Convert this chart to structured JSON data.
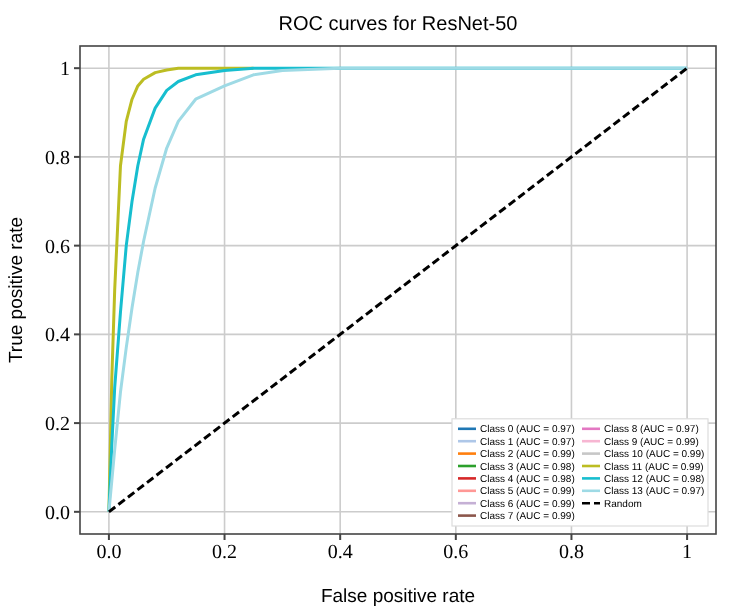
{
  "chart_data": {
    "type": "line",
    "title": "ROC curves for ResNet-50",
    "xlabel": "False positive rate",
    "ylabel": "True positive rate",
    "x": [
      0,
      0.005,
      0.01,
      0.02,
      0.03,
      0.04,
      0.05,
      0.06,
      0.08,
      0.1,
      0.12,
      0.15,
      0.2,
      0.25,
      0.3,
      0.4,
      0.6,
      0.8,
      1
    ],
    "xlim": [
      -0.05,
      1.05
    ],
    "ylim": [
      -0.05,
      1.05
    ],
    "xticks": [
      {
        "value": 0,
        "label": "0.0"
      },
      0.2,
      0.4,
      0.6,
      0.8,
      1
    ],
    "yticks": [
      {
        "value": 0,
        "label": "0.0"
      },
      0.2,
      0.4,
      0.6,
      0.8,
      1
    ],
    "grid": true,
    "legend": "bottom right",
    "series": [
      {
        "name": "Class 0 (AUC = 0.97)",
        "color": "#1f77b4",
        "values": [
          null,
          null,
          null,
          null,
          null,
          null,
          null,
          null,
          null,
          null,
          null,
          null,
          null,
          null,
          null,
          null,
          null,
          null,
          null
        ]
      },
      {
        "name": "Class 1 (AUC = 0.97)",
        "color": "#aec7e8",
        "values": [
          null,
          null,
          null,
          null,
          null,
          null,
          null,
          null,
          null,
          null,
          null,
          null,
          null,
          null,
          null,
          null,
          null,
          null,
          null
        ]
      },
      {
        "name": "Class 2 (AUC = 0.99)",
        "color": "#ff7f0e",
        "values": [
          null,
          null,
          null,
          null,
          null,
          null,
          null,
          null,
          null,
          null,
          null,
          null,
          null,
          null,
          null,
          null,
          null,
          null,
          null
        ]
      },
      {
        "name": "Class 3 (AUC = 0.98)",
        "color": "#2ca02c",
        "values": [
          null,
          null,
          null,
          null,
          null,
          null,
          null,
          null,
          null,
          null,
          null,
          null,
          null,
          null,
          null,
          null,
          null,
          null,
          null
        ]
      },
      {
        "name": "Class 4 (AUC = 0.98)",
        "color": "#d62728",
        "values": [
          null,
          null,
          null,
          null,
          null,
          null,
          null,
          null,
          null,
          null,
          null,
          null,
          null,
          null,
          null,
          null,
          null,
          null,
          null
        ]
      },
      {
        "name": "Class 5 (AUC = 0.99)",
        "color": "#ff9896",
        "values": [
          null,
          null,
          null,
          null,
          null,
          null,
          null,
          null,
          null,
          null,
          null,
          null,
          null,
          null,
          null,
          null,
          null,
          null,
          null
        ]
      },
      {
        "name": "Class 6 (AUC = 0.99)",
        "color": "#c5b0d5",
        "values": [
          null,
          null,
          null,
          null,
          null,
          null,
          null,
          null,
          null,
          null,
          null,
          null,
          null,
          null,
          null,
          null,
          null,
          null,
          null
        ]
      },
      {
        "name": "Class 7 (AUC = 0.99)",
        "color": "#8c564b",
        "values": [
          null,
          null,
          null,
          null,
          null,
          null,
          null,
          null,
          null,
          null,
          null,
          null,
          null,
          null,
          null,
          null,
          null,
          null,
          null
        ]
      },
      {
        "name": "Class 8 (AUC = 0.97)",
        "color": "#e377c2",
        "values": [
          null,
          null,
          null,
          null,
          null,
          null,
          null,
          null,
          null,
          null,
          null,
          null,
          null,
          null,
          null,
          null,
          null,
          null,
          null
        ]
      },
      {
        "name": "Class 9 (AUC = 0.99)",
        "color": "#f7b6d2",
        "values": [
          null,
          null,
          null,
          null,
          null,
          null,
          null,
          null,
          null,
          null,
          null,
          null,
          null,
          null,
          null,
          null,
          null,
          null,
          null
        ]
      },
      {
        "name": "Class 10 (AUC = 0.99)",
        "color": "#c7c7c7",
        "values": [
          null,
          null,
          null,
          null,
          null,
          null,
          null,
          null,
          null,
          null,
          null,
          null,
          null,
          null,
          null,
          null,
          null,
          null,
          null
        ]
      },
      {
        "name": "Class 11 (AUC = 0.99)",
        "color": "#bcbd22",
        "values": [
          0,
          0.3,
          0.5,
          0.78,
          0.88,
          0.93,
          0.96,
          0.975,
          0.99,
          0.996,
          1,
          1,
          1,
          1,
          null,
          null,
          null,
          null,
          null
        ]
      },
      {
        "name": "Class 12 (AUC = 0.98)",
        "color": "#17becf",
        "values": [
          0,
          0.15,
          0.28,
          0.45,
          0.6,
          0.7,
          0.78,
          0.84,
          0.91,
          0.95,
          0.97,
          0.985,
          0.995,
          1,
          1,
          1,
          1,
          1,
          1
        ]
      },
      {
        "name": "Class 13 (AUC = 0.97)",
        "color": "#9edae5",
        "values": [
          0,
          0.07,
          0.14,
          0.27,
          0.37,
          0.46,
          0.54,
          0.61,
          0.73,
          0.82,
          0.88,
          0.93,
          0.96,
          0.985,
          0.995,
          1,
          1,
          1,
          1
        ]
      },
      {
        "name": "Random",
        "color": "#000000",
        "line_style": "dashed",
        "x": [
          0,
          1
        ],
        "values": [
          0,
          1
        ]
      }
    ]
  }
}
